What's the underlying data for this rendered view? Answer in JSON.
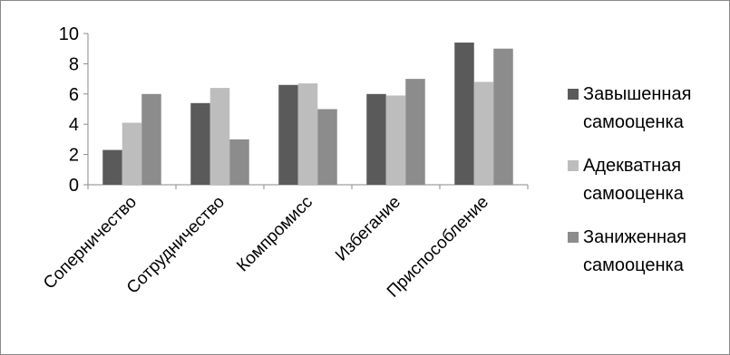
{
  "chart_data": {
    "type": "bar",
    "categories": [
      "Соперничество",
      "Сотрудничество",
      "Компромисс",
      "Избегание",
      "Приспособление"
    ],
    "series": [
      {
        "name": "Завышенная самооценка",
        "name_lines": [
          "Завышенная",
          "самооценка"
        ],
        "color": "#5a5a5a",
        "values": [
          2.3,
          5.4,
          6.6,
          6.0,
          9.4
        ]
      },
      {
        "name": "Адекватная самооценка",
        "name_lines": [
          "Адекватная",
          "самооценка"
        ],
        "color": "#bdbdbd",
        "values": [
          4.1,
          6.4,
          6.7,
          5.9,
          6.8
        ]
      },
      {
        "name": "Заниженная самооценка",
        "name_lines": [
          "Заниженная",
          "самооценка"
        ],
        "color": "#8c8c8c",
        "values": [
          6.0,
          3.0,
          5.0,
          7.0,
          9.0
        ]
      }
    ],
    "ylim": [
      0,
      10
    ],
    "yticks": [
      "0",
      "2",
      "4",
      "6",
      "8",
      "10"
    ],
    "grid": false,
    "legend_position": "right",
    "title": "",
    "xlabel": "",
    "ylabel": ""
  }
}
